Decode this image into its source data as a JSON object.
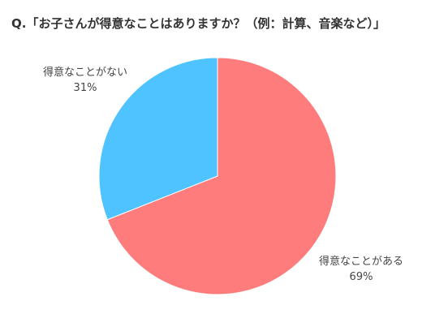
{
  "chart_data": {
    "type": "pie",
    "title": "Q.「お子さんが得意なことはありますか？（例：計算、音楽など）」",
    "categories": [
      "得意なことがある",
      "得意なことがない"
    ],
    "values": [
      69,
      31
    ],
    "value_labels": [
      "69%",
      "31%"
    ],
    "colors": [
      "#FF7C7C",
      "#4FC3FF"
    ],
    "legend": "none"
  }
}
